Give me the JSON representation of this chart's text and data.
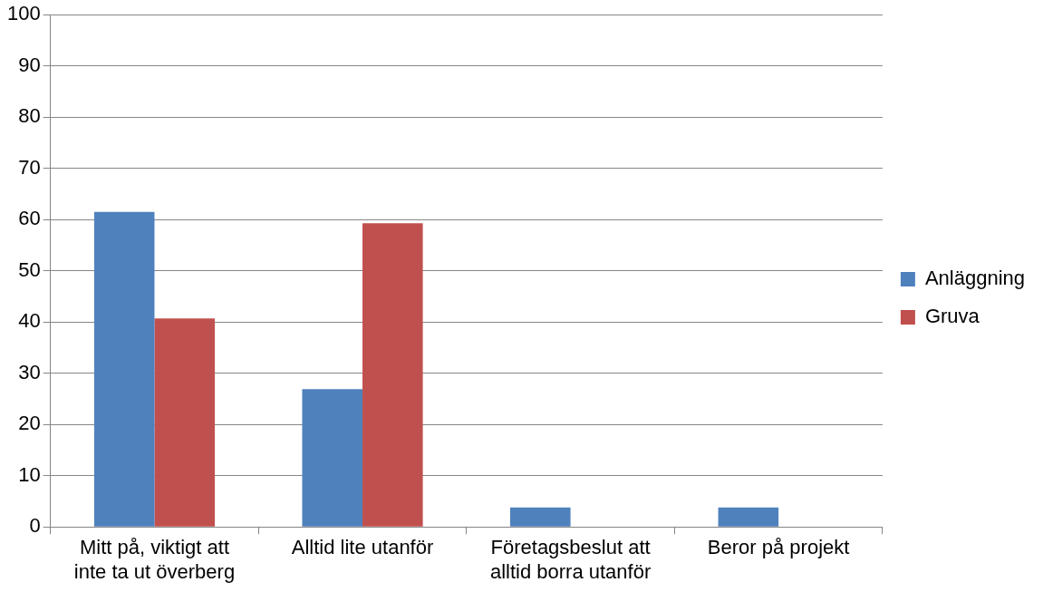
{
  "chart_data": {
    "type": "bar",
    "categories": [
      "Mitt på, viktigt att inte ta ut överberg",
      "Alltid lite utanför",
      "Företagsbeslut att alltid borra utanför",
      "Beror på projekt"
    ],
    "series": [
      {
        "name": "Anläggning",
        "color": "#4f81bd",
        "values": [
          61.5,
          26.9,
          3.8,
          3.8
        ]
      },
      {
        "name": "Gruva",
        "color": "#c0504d",
        "values": [
          40.7,
          59.3,
          null,
          null
        ]
      }
    ],
    "ylim": [
      0,
      100
    ],
    "yticks": [
      0,
      10,
      20,
      30,
      40,
      50,
      60,
      70,
      80,
      90,
      100
    ],
    "grid": "y",
    "legend": "right"
  }
}
